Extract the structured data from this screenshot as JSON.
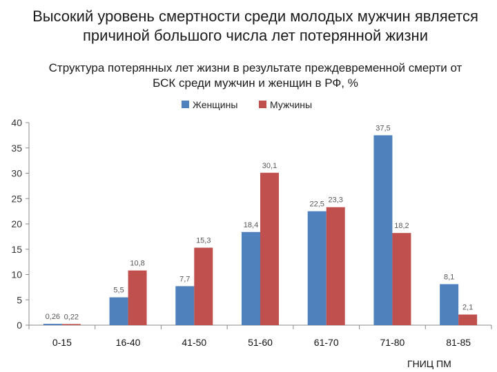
{
  "headline": {
    "line1": "Высокий уровень смертности среди молодых мужчин является",
    "line2": "причиной большого числа лет потерянной жизни"
  },
  "subtitle": {
    "line1": "Структура потерянных лет  жизни в результате преждевременной смерти от",
    "line2": "БСК среди мужчин и женщин в РФ, %"
  },
  "source": "ГНИЦ ПМ",
  "chart_data": {
    "type": "bar",
    "categories": [
      "0-15",
      "16-40",
      "41-50",
      "51-60",
      "61-70",
      "71-80",
      "81-85"
    ],
    "series": [
      {
        "name": "Женщины",
        "color": "#4f81bd",
        "values": [
          0.26,
          5.5,
          7.7,
          18.4,
          22.5,
          37.5,
          8.1
        ],
        "labels": [
          "0,26",
          "5,5",
          "7,7",
          "18,4",
          "22,5",
          "37,5",
          "8,1"
        ]
      },
      {
        "name": "Мужчины",
        "color": "#c0504d",
        "values": [
          0.22,
          10.8,
          15.3,
          30.1,
          23.3,
          18.2,
          2.1
        ],
        "labels": [
          "0,22",
          "10,8",
          "15,3",
          "30,1",
          "23,3",
          "18,2",
          "2,1"
        ]
      }
    ],
    "ylim": [
      0,
      40
    ],
    "yticks": [
      0,
      5,
      10,
      15,
      20,
      25,
      30,
      35,
      40
    ],
    "grid": false,
    "legend": "top"
  }
}
